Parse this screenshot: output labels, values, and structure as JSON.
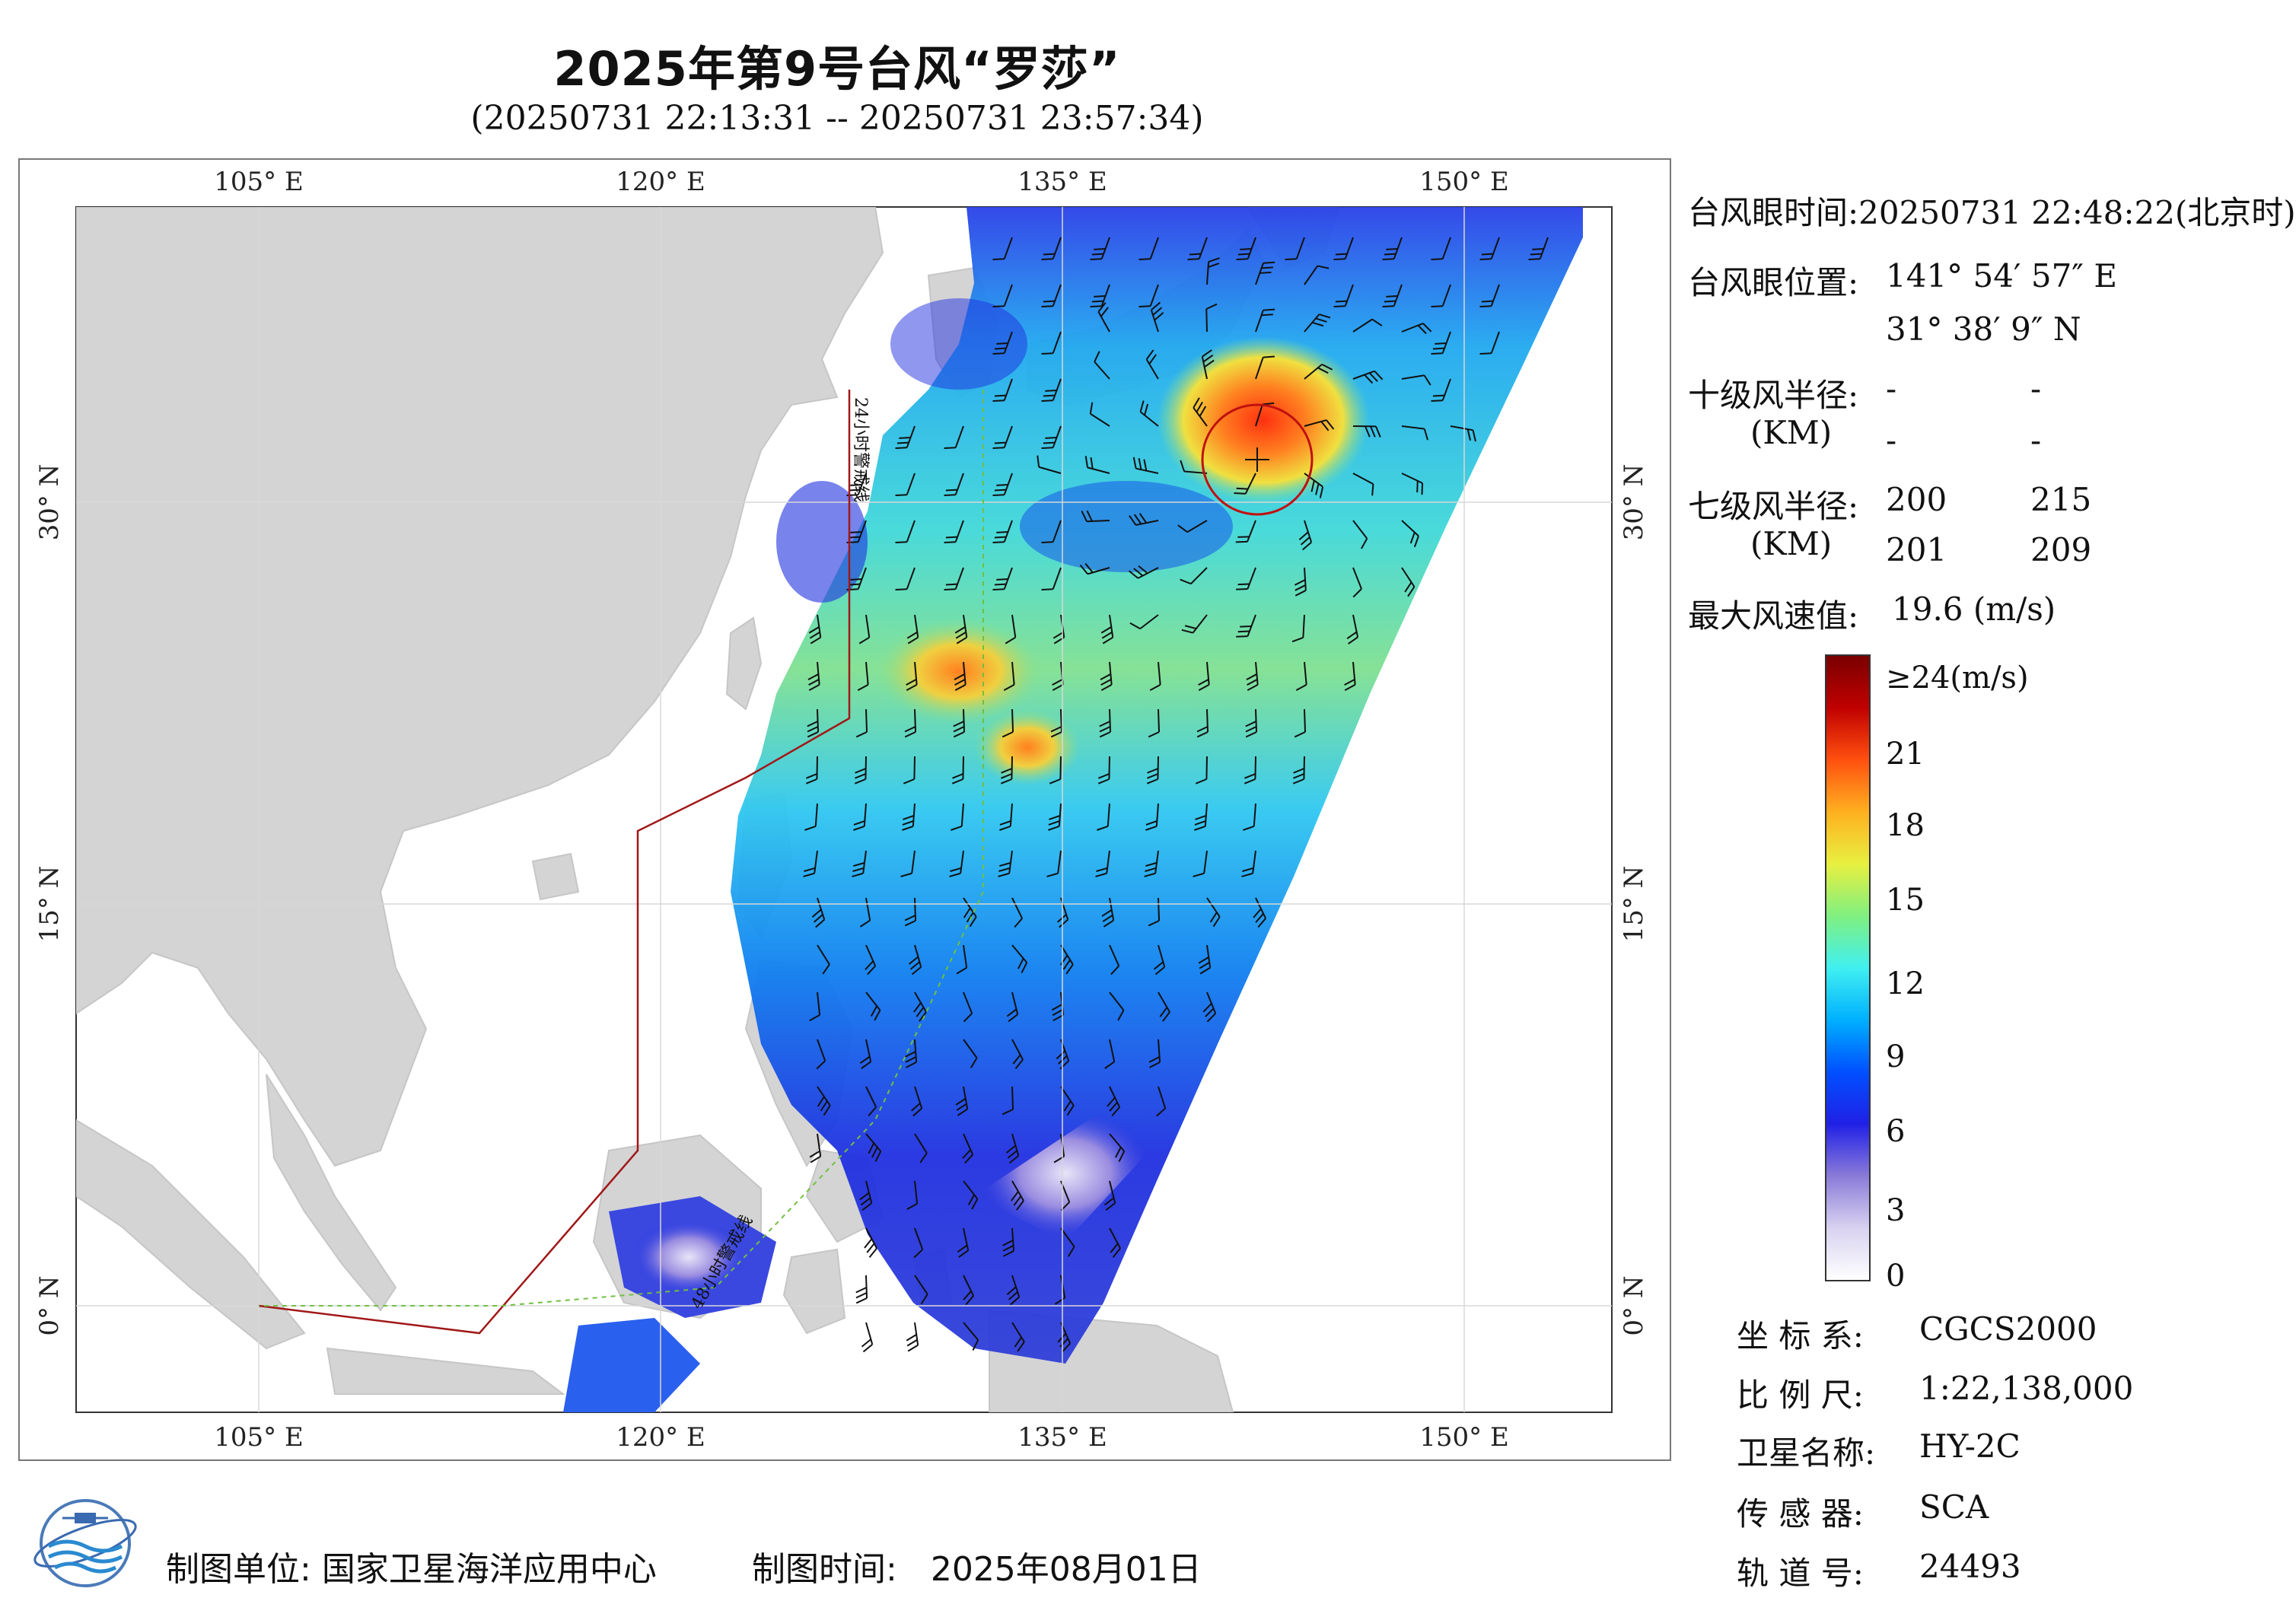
{
  "title": "2025年第9号台风“罗莎”",
  "subtitle": "(20250731 22:13:31 -- 20250731 23:57:34)",
  "map": {
    "lon_labels": [
      "105° E",
      "120° E",
      "135° E",
      "150° E"
    ],
    "lat_labels": [
      "30° N",
      "15° N",
      "0° N"
    ],
    "warning_line_24h_label": "24小时警戒线",
    "warning_line_48h_label": "48小时警戒线",
    "land_color": "#d4d4d4",
    "sea_color": "#ffffff"
  },
  "typhoon": {
    "eye_time_label": "台风眼时间:",
    "eye_time_value": "20250731 22:48:22(北京时)",
    "eye_position_label": "台风眼位置:",
    "eye_lon": "141° 54′ 57″ E",
    "eye_lat": "31° 38′ 9″ N",
    "r10_label": "十级风半径:",
    "r10_unit": "(KM)",
    "r10_values": [
      "-",
      "-",
      "-",
      "-"
    ],
    "r7_label": "七级风半径:",
    "r7_unit": "(KM)",
    "r7_values": [
      "200",
      "215",
      "201",
      "209"
    ],
    "max_wind_label": "最大风速值:",
    "max_wind_value": "19.6 (m/s)"
  },
  "colorbar": {
    "labels": [
      "≥24(m/s)",
      "21",
      "18",
      "15",
      "12",
      "9",
      "6",
      "3",
      "0"
    ],
    "colors": [
      "#ffffff",
      "#d8d2f0",
      "#8a7ad8",
      "#2020e6",
      "#0050ff",
      "#00b0ff",
      "#40f0f0",
      "#80f080",
      "#e8f040",
      "#ffb020",
      "#ff5010",
      "#c00000",
      "#7a0000"
    ]
  },
  "meta": {
    "crs_label": "坐  标  系:",
    "crs_value": "CGCS2000",
    "scale_label": "比  例  尺:",
    "scale_value": "1:22,138,000",
    "satellite_label": "卫星名称:",
    "satellite_value": "HY-2C",
    "sensor_label": "传  感  器:",
    "sensor_value": "SCA",
    "orbit_label": "轨  道  号:",
    "orbit_value": "24493"
  },
  "footer": {
    "producer_label": "制图单位:",
    "producer_value": "国家卫星海洋应用中心",
    "date_label": "制图时间:",
    "date_value": "2025年08月01日"
  }
}
